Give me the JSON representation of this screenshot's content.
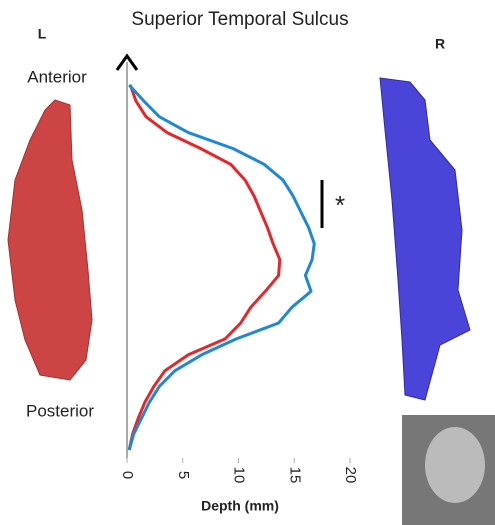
{
  "chart_data": {
    "type": "line",
    "title": "Superior Temporal Sulcus",
    "left_label": "L",
    "right_label": "R",
    "top_label": "Anterior",
    "bottom_label": "Posterior",
    "xlabel": "Depth (mm)",
    "annotation": "*",
    "categories": [
      null,
      null,
      null,
      null,
      null,
      null,
      null,
      null,
      null,
      null,
      null,
      null,
      null,
      null,
      null,
      null,
      null,
      null,
      null,
      null,
      null,
      null,
      null,
      null
    ],
    "series": [
      {
        "color": "#e8262a",
        "values": [
          0.3,
          0.8,
          1.7,
          3.6,
          6.6,
          9.3,
          10.6,
          11.4,
          12,
          12.6,
          13.1,
          13.7,
          13.6,
          12.4,
          11.1,
          10.2,
          8.8,
          5.5,
          3.4,
          2.4,
          1.6,
          1.0,
          0.5,
          0.2
        ]
      },
      {
        "color": "#1e88d8",
        "values": [
          0.2,
          1.5,
          2.9,
          5.5,
          9.5,
          12.3,
          14,
          14.9,
          15.6,
          16.3,
          16.8,
          16.6,
          16.0,
          16.5,
          14.8,
          13.6,
          9.8,
          6.7,
          4.3,
          2.9,
          2.0,
          1.3,
          0.6,
          0.2
        ]
      }
    ],
    "xlim": [
      0,
      20
    ],
    "xticks": [
      0,
      5,
      10,
      15,
      20
    ]
  }
}
